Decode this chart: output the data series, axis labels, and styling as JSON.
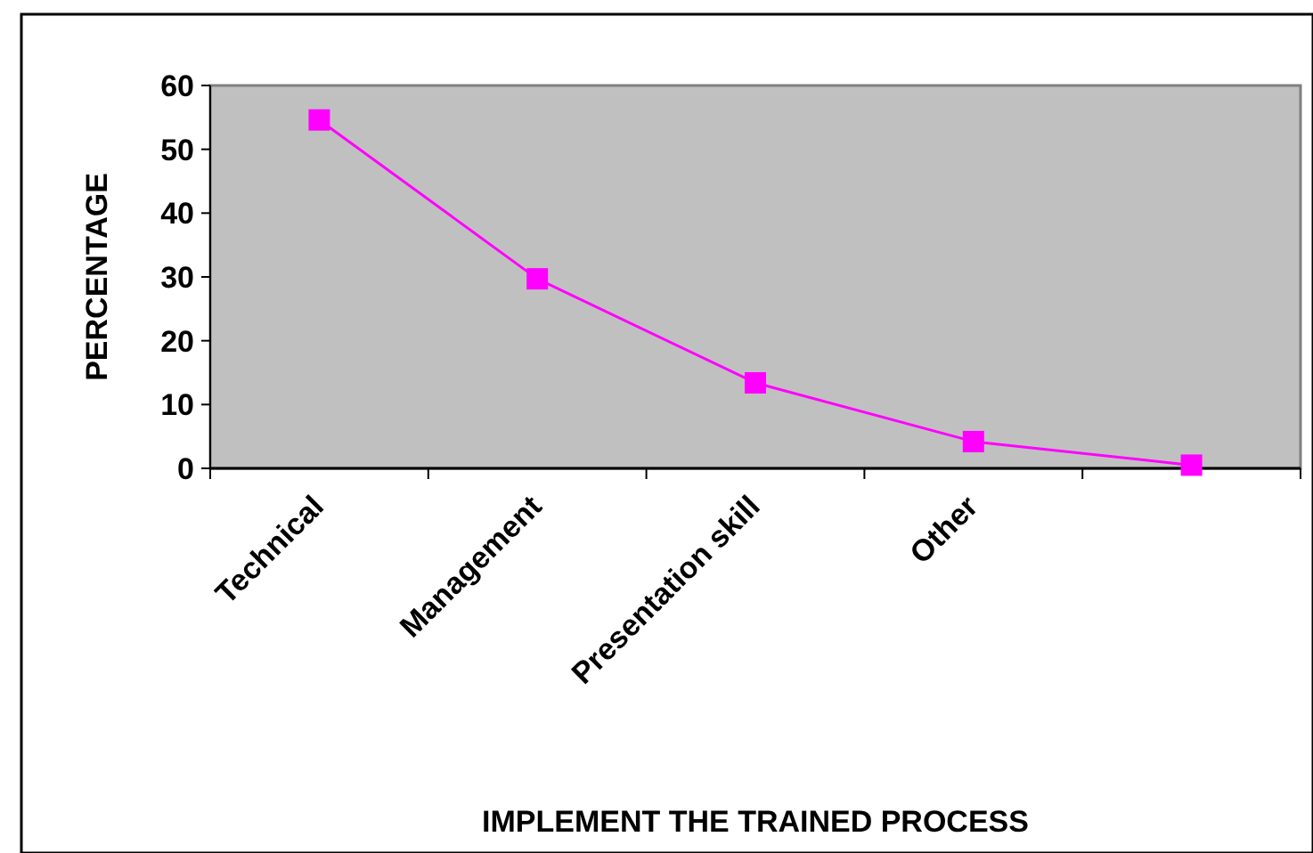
{
  "chart_data": {
    "type": "line",
    "xlabel": "IMPLEMENT THE TRAINED PROCESS",
    "ylabel": "PERCENTAGE",
    "categories": [
      "Technical",
      "Management",
      "Presentation skill",
      "Other",
      null
    ],
    "series": [
      {
        "color": "#ff00ff",
        "values": [
          54.6,
          29.7,
          13.4,
          4.2,
          0.5
        ]
      }
    ],
    "ylim": [
      0,
      60
    ],
    "yticks": [
      0,
      10,
      20,
      30,
      40,
      50,
      60
    ],
    "grid": false,
    "marker": "square",
    "line_style": "solid"
  }
}
